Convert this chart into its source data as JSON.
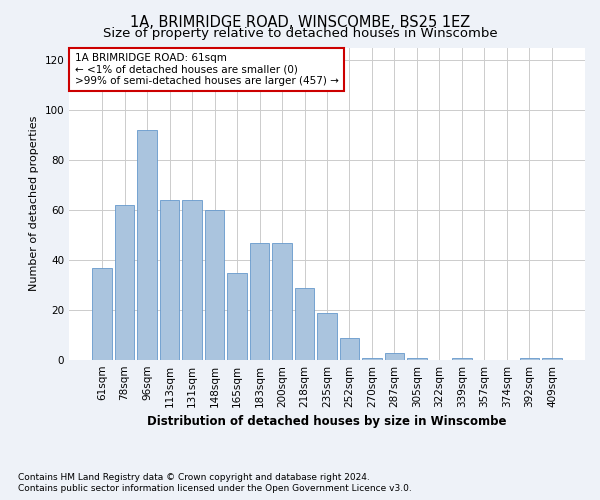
{
  "title": "1A, BRIMRIDGE ROAD, WINSCOMBE, BS25 1EZ",
  "subtitle": "Size of property relative to detached houses in Winscombe",
  "xlabel": "Distribution of detached houses by size in Winscombe",
  "ylabel": "Number of detached properties",
  "categories": [
    "61sqm",
    "78sqm",
    "96sqm",
    "113sqm",
    "131sqm",
    "148sqm",
    "165sqm",
    "183sqm",
    "200sqm",
    "218sqm",
    "235sqm",
    "252sqm",
    "270sqm",
    "287sqm",
    "305sqm",
    "322sqm",
    "339sqm",
    "357sqm",
    "374sqm",
    "392sqm",
    "409sqm"
  ],
  "values": [
    37,
    62,
    92,
    64,
    64,
    60,
    35,
    47,
    47,
    29,
    19,
    9,
    1,
    3,
    1,
    0,
    1,
    0,
    0,
    1,
    1
  ],
  "bar_color": "#aac4de",
  "bar_edge_color": "#6699cc",
  "annotation_text": "1A BRIMRIDGE ROAD: 61sqm\n← <1% of detached houses are smaller (0)\n>99% of semi-detached houses are larger (457) →",
  "ylim": [
    0,
    125
  ],
  "yticks": [
    0,
    20,
    40,
    60,
    80,
    100,
    120
  ],
  "footer_line1": "Contains HM Land Registry data © Crown copyright and database right 2024.",
  "footer_line2": "Contains public sector information licensed under the Open Government Licence v3.0.",
  "background_color": "#eef2f8",
  "plot_bg_color": "#ffffff",
  "title_fontsize": 10.5,
  "subtitle_fontsize": 9.5,
  "annotation_box_color": "#ffffff",
  "annotation_border_color": "#cc0000",
  "grid_color": "#cccccc",
  "footer_fontsize": 6.5,
  "xlabel_fontsize": 8.5,
  "ylabel_fontsize": 8,
  "tick_fontsize": 7.5
}
